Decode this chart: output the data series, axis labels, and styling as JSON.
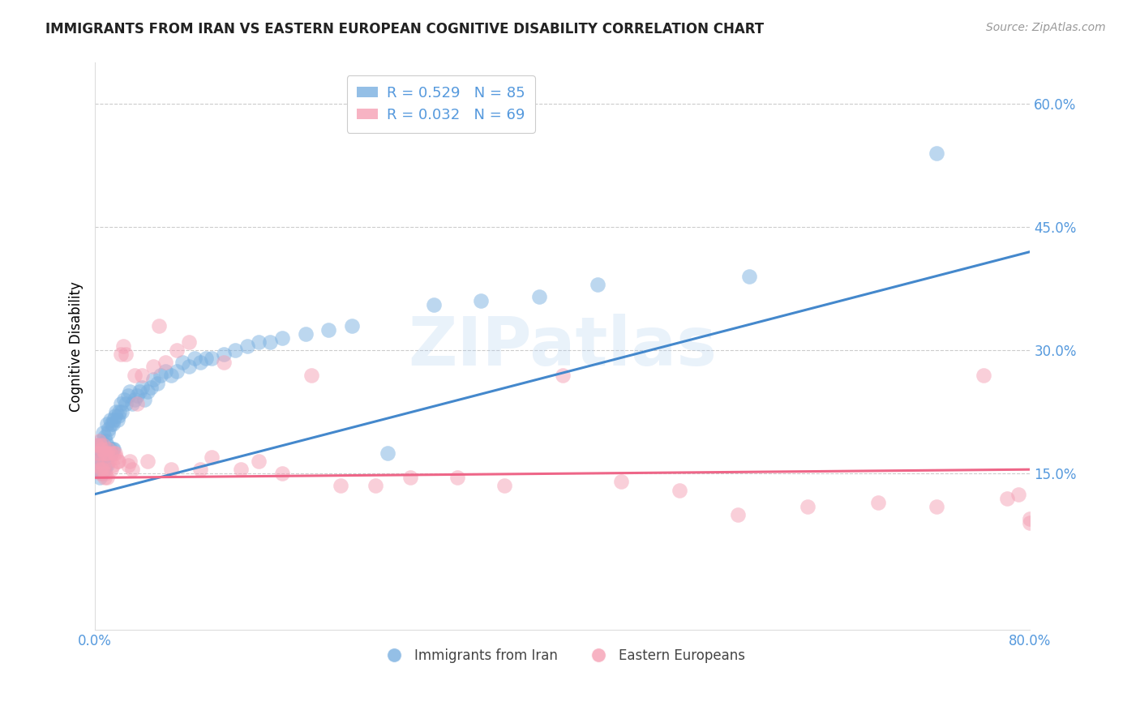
{
  "title": "IMMIGRANTS FROM IRAN VS EASTERN EUROPEAN COGNITIVE DISABILITY CORRELATION CHART",
  "source": "Source: ZipAtlas.com",
  "ylabel": "Cognitive Disability",
  "xlim": [
    0.0,
    0.8
  ],
  "ylim": [
    -0.04,
    0.65
  ],
  "y_tick_positions": [
    0.15,
    0.3,
    0.45,
    0.6
  ],
  "y_tick_labels": [
    "15.0%",
    "30.0%",
    "45.0%",
    "60.0%"
  ],
  "x_tick_labels": [
    "0.0%",
    "",
    "",
    "",
    "80.0%"
  ],
  "x_ticks": [
    0.0,
    0.2,
    0.4,
    0.6,
    0.8
  ],
  "grid_color": "#cccccc",
  "watermark_text": "ZIPatlas",
  "legend_title_iran": "Immigrants from Iran",
  "legend_title_ee": "Eastern Europeans",
  "iran_color": "#7ab0e0",
  "ee_color": "#f5a0b5",
  "iran_line_color": "#4488cc",
  "ee_line_color": "#ee6688",
  "tick_label_color": "#5599dd",
  "iran_R": 0.529,
  "iran_N": 85,
  "ee_R": 0.032,
  "ee_N": 69,
  "iran_line_x": [
    0.0,
    0.8
  ],
  "iran_line_y": [
    0.125,
    0.42
  ],
  "ee_line_x": [
    0.0,
    0.8
  ],
  "ee_line_y": [
    0.145,
    0.155
  ],
  "iran_scatter_x": [
    0.001,
    0.002,
    0.002,
    0.003,
    0.003,
    0.003,
    0.004,
    0.004,
    0.004,
    0.005,
    0.005,
    0.005,
    0.006,
    0.006,
    0.006,
    0.007,
    0.007,
    0.007,
    0.008,
    0.008,
    0.008,
    0.009,
    0.009,
    0.01,
    0.01,
    0.01,
    0.011,
    0.011,
    0.012,
    0.012,
    0.013,
    0.013,
    0.014,
    0.014,
    0.015,
    0.015,
    0.016,
    0.016,
    0.017,
    0.018,
    0.019,
    0.02,
    0.021,
    0.022,
    0.023,
    0.025,
    0.026,
    0.028,
    0.03,
    0.032,
    0.034,
    0.036,
    0.038,
    0.04,
    0.042,
    0.045,
    0.048,
    0.05,
    0.053,
    0.056,
    0.06,
    0.065,
    0.07,
    0.075,
    0.08,
    0.085,
    0.09,
    0.095,
    0.1,
    0.11,
    0.12,
    0.13,
    0.14,
    0.15,
    0.16,
    0.18,
    0.2,
    0.22,
    0.25,
    0.29,
    0.33,
    0.38,
    0.43,
    0.56,
    0.72
  ],
  "iran_scatter_y": [
    0.175,
    0.165,
    0.155,
    0.185,
    0.17,
    0.155,
    0.185,
    0.16,
    0.145,
    0.19,
    0.175,
    0.155,
    0.185,
    0.17,
    0.15,
    0.2,
    0.175,
    0.155,
    0.195,
    0.175,
    0.155,
    0.19,
    0.16,
    0.21,
    0.185,
    0.16,
    0.2,
    0.17,
    0.205,
    0.175,
    0.215,
    0.18,
    0.21,
    0.175,
    0.21,
    0.18,
    0.215,
    0.18,
    0.22,
    0.225,
    0.215,
    0.22,
    0.225,
    0.235,
    0.225,
    0.24,
    0.235,
    0.245,
    0.25,
    0.235,
    0.24,
    0.245,
    0.25,
    0.255,
    0.24,
    0.25,
    0.255,
    0.265,
    0.26,
    0.27,
    0.275,
    0.27,
    0.275,
    0.285,
    0.28,
    0.29,
    0.285,
    0.29,
    0.29,
    0.295,
    0.3,
    0.305,
    0.31,
    0.31,
    0.315,
    0.32,
    0.325,
    0.33,
    0.175,
    0.355,
    0.36,
    0.365,
    0.38,
    0.39,
    0.54
  ],
  "ee_scatter_x": [
    0.001,
    0.002,
    0.002,
    0.003,
    0.003,
    0.004,
    0.004,
    0.005,
    0.005,
    0.006,
    0.006,
    0.007,
    0.007,
    0.008,
    0.008,
    0.009,
    0.009,
    0.01,
    0.01,
    0.011,
    0.012,
    0.013,
    0.014,
    0.015,
    0.016,
    0.017,
    0.018,
    0.019,
    0.02,
    0.022,
    0.024,
    0.026,
    0.028,
    0.03,
    0.032,
    0.034,
    0.036,
    0.04,
    0.045,
    0.05,
    0.055,
    0.06,
    0.065,
    0.07,
    0.08,
    0.09,
    0.1,
    0.11,
    0.125,
    0.14,
    0.16,
    0.185,
    0.21,
    0.24,
    0.27,
    0.31,
    0.35,
    0.4,
    0.45,
    0.5,
    0.55,
    0.61,
    0.67,
    0.72,
    0.76,
    0.78,
    0.79,
    0.8,
    0.8
  ],
  "ee_scatter_y": [
    0.185,
    0.175,
    0.16,
    0.19,
    0.165,
    0.185,
    0.155,
    0.175,
    0.15,
    0.18,
    0.155,
    0.185,
    0.16,
    0.175,
    0.145,
    0.175,
    0.15,
    0.175,
    0.145,
    0.18,
    0.165,
    0.175,
    0.155,
    0.16,
    0.175,
    0.175,
    0.17,
    0.165,
    0.165,
    0.295,
    0.305,
    0.295,
    0.16,
    0.165,
    0.155,
    0.27,
    0.235,
    0.27,
    0.165,
    0.28,
    0.33,
    0.285,
    0.155,
    0.3,
    0.31,
    0.155,
    0.17,
    0.285,
    0.155,
    0.165,
    0.15,
    0.27,
    0.135,
    0.135,
    0.145,
    0.145,
    0.135,
    0.27,
    0.14,
    0.13,
    0.1,
    0.11,
    0.115,
    0.11,
    0.27,
    0.12,
    0.125,
    0.095,
    0.09
  ]
}
